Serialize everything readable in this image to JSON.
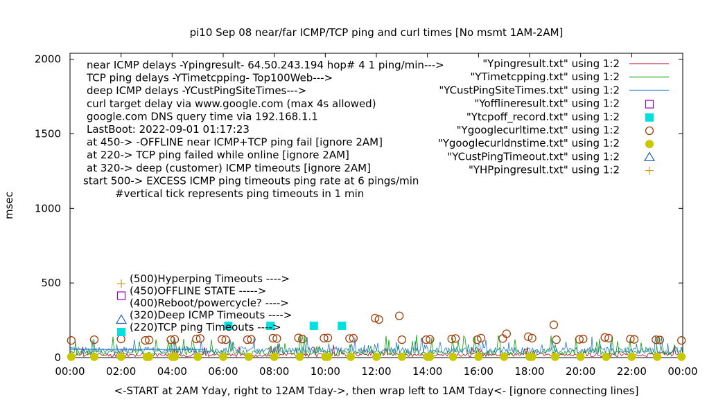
{
  "chart_data": {
    "type": "line",
    "title": "pi10 Sep 08  near/far ICMP/TCP ping and curl times [No msmt 1AM-2AM]",
    "xlabel": "<-START at 2AM Yday, right to 12AM Tday->, then wrap left to 1AM Tday<- [ignore connecting lines]",
    "ylabel": "msec",
    "xlim": [
      0,
      24
    ],
    "ylim": [
      0,
      2040
    ],
    "x_ticks": [
      "00:00",
      "02:00",
      "04:00",
      "06:00",
      "08:00",
      "10:00",
      "12:00",
      "14:00",
      "16:00",
      "18:00",
      "20:00",
      "22:00",
      "00:00"
    ],
    "y_ticks": [
      0,
      500,
      1000,
      1500,
      2000
    ],
    "notes": [
      "near ICMP delays -Ypingresult- 64.50.243.194 hop# 4 1 ping/min--->",
      "TCP ping delays -YTimetcpping- Top100Web--->",
      "deep ICMP delays -YCustPingSiteTimes--->",
      "curl target delay via www.google.com (max 4s allowed)",
      "google.com DNS query time via 192.168.1.1",
      "LastBoot: 2022-09-01 01:17:23",
      "at 450-> -OFFLINE near ICMP+TCP ping fail [ignore 2AM]",
      "at 220-> TCP ping failed while online [ignore 2AM]",
      "at 320-> deep (customer) ICMP timeouts [ignore 2AM]",
      "start 500-> EXCESS ICMP ping timeouts ping rate at 6 pings/min",
      "#vertical tick represents ping timeouts in 1 min"
    ],
    "inline_legend": [
      {
        "marker": "plus",
        "color": "#d6a21e",
        "text": "(500)Hyperping Timeouts ---->"
      },
      {
        "marker": "square-open",
        "color": "#9400d3",
        "text": "(450)OFFLINE STATE ----->"
      },
      {
        "marker": "none",
        "color": "",
        "text": "(400)Reboot/powercycle? ---->"
      },
      {
        "marker": "triangle",
        "color": "#1f5fb4",
        "text": "(320)Deep ICMP Timeouts ---->"
      },
      {
        "marker": "square-filled",
        "color": "#00e0e0",
        "text": "(220)TCP ping Timeouts ---->"
      }
    ],
    "legend": [
      {
        "label": "\"Ypingresult.txt\" using 1:2",
        "marker": "line",
        "color": "#c0001c"
      },
      {
        "label": "\"YTimetcpping.txt\" using 1:2",
        "marker": "line",
        "color": "#00a000"
      },
      {
        "label": "\"YCustPingSiteTimes.txt\" using 1:2",
        "marker": "line",
        "color": "#1f77c4"
      },
      {
        "label": "\"Yofflineresult.txt\" using 1:2",
        "marker": "square-open",
        "color": "#9400d3"
      },
      {
        "label": "\"Ytcpoff_record.txt\" using 1:2",
        "marker": "square-filled",
        "color": "#00e0e0"
      },
      {
        "label": "\"Ygooglecurltime.txt\" using 1:2",
        "marker": "circle-open",
        "color": "#a0400a"
      },
      {
        "label": "\"Ygooglecurldnstime.txt\" using 1:2",
        "marker": "circle-filled",
        "color": "#c8c800"
      },
      {
        "label": "\"YCustPingTimeout.txt\" using 1:2",
        "marker": "triangle",
        "color": "#1f5fb4"
      },
      {
        "label": "\"YHPpingresult.txt\" using 1:2",
        "marker": "plus",
        "color": "#d6a21e"
      }
    ],
    "series": [
      {
        "name": "\"Ygooglecurltime.txt\" using 1:2",
        "marker": "circle-open",
        "color": "#a0400a",
        "points": [
          [
            0.05,
            115
          ],
          [
            0.95,
            120
          ],
          [
            2.0,
            125
          ],
          [
            2.95,
            115
          ],
          [
            3.1,
            118
          ],
          [
            3.95,
            120
          ],
          [
            4.1,
            122
          ],
          [
            4.95,
            125
          ],
          [
            5.1,
            128
          ],
          [
            5.95,
            122
          ],
          [
            6.1,
            120
          ],
          [
            6.95,
            120
          ],
          [
            7.1,
            122
          ],
          [
            7.95,
            130
          ],
          [
            8.1,
            128
          ],
          [
            8.95,
            132
          ],
          [
            9.1,
            125
          ],
          [
            9.95,
            130
          ],
          [
            10.1,
            132
          ],
          [
            10.95,
            128
          ],
          [
            11.1,
            130
          ],
          [
            11.95,
            265
          ],
          [
            12.1,
            255
          ],
          [
            12.9,
            280
          ],
          [
            13.0,
            120
          ],
          [
            13.95,
            120
          ],
          [
            14.1,
            122
          ],
          [
            14.95,
            125
          ],
          [
            15.1,
            128
          ],
          [
            15.95,
            120
          ],
          [
            16.1,
            130
          ],
          [
            16.95,
            128
          ],
          [
            17.1,
            160
          ],
          [
            17.95,
            140
          ],
          [
            18.1,
            130
          ],
          [
            18.95,
            220
          ],
          [
            19.05,
            120
          ],
          [
            19.95,
            122
          ],
          [
            20.1,
            125
          ],
          [
            20.95,
            135
          ],
          [
            21.1,
            130
          ],
          [
            21.95,
            125
          ],
          [
            22.1,
            122
          ],
          [
            22.95,
            120
          ],
          [
            23.1,
            118
          ],
          [
            23.95,
            115
          ]
        ]
      },
      {
        "name": "\"Ygooglecurldnstime.txt\" using 1:2",
        "marker": "circle-filled",
        "color": "#c8c800",
        "points": [
          [
            0.05,
            5
          ],
          [
            0.95,
            5
          ],
          [
            2.0,
            5
          ],
          [
            3.0,
            5
          ],
          [
            3.1,
            5
          ],
          [
            4.0,
            5
          ],
          [
            4.1,
            5
          ],
          [
            5.0,
            5
          ],
          [
            6.0,
            5
          ],
          [
            7.0,
            5
          ],
          [
            8.0,
            5
          ],
          [
            9.0,
            5
          ],
          [
            10.0,
            5
          ],
          [
            10.1,
            5
          ],
          [
            11.0,
            5
          ],
          [
            12.0,
            5
          ],
          [
            13.0,
            5
          ],
          [
            14.0,
            5
          ],
          [
            14.1,
            5
          ],
          [
            15.0,
            5
          ],
          [
            16.0,
            5
          ],
          [
            17.0,
            5
          ],
          [
            18.0,
            5
          ],
          [
            18.1,
            5
          ],
          [
            19.0,
            5
          ],
          [
            20.0,
            5
          ],
          [
            21.0,
            5
          ],
          [
            22.0,
            5
          ],
          [
            23.0,
            5
          ],
          [
            23.95,
            5
          ]
        ]
      },
      {
        "name": "\"Ytcpoff_record.txt\" using 1:2",
        "marker": "square-filled",
        "color": "#00e0e0",
        "points": [
          [
            6.2,
            213
          ],
          [
            7.85,
            213
          ],
          [
            9.55,
            213
          ],
          [
            10.65,
            213
          ]
        ]
      }
    ]
  }
}
